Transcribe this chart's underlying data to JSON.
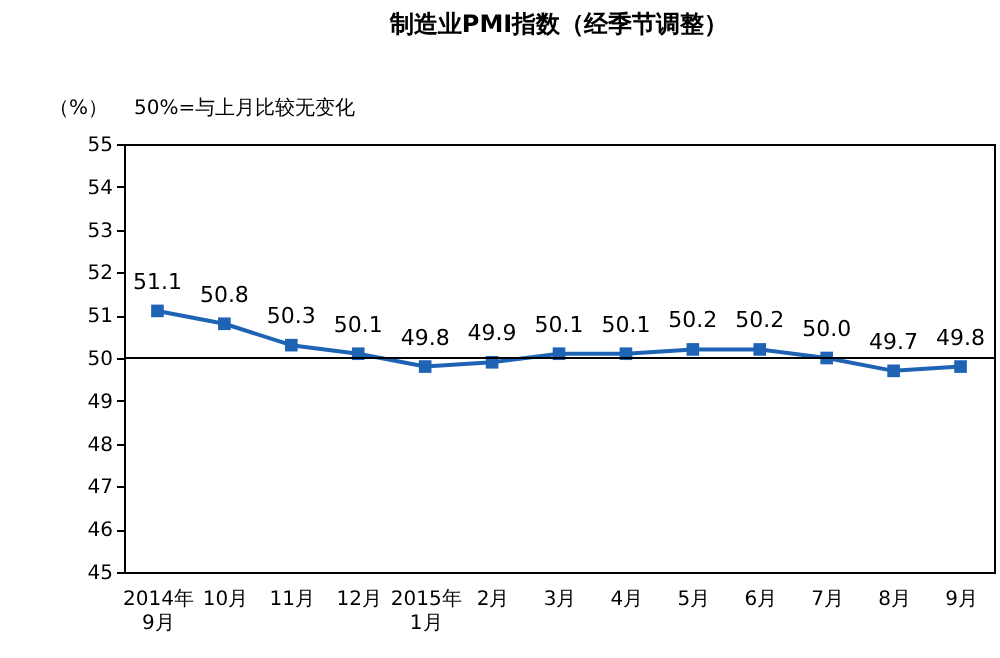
{
  "chart_data": {
    "type": "line",
    "title": "制造业PMI指数（经季节调整）",
    "ylabel": "（%）",
    "annotations": [
      "50%=与上月比较无变化"
    ],
    "categories": [
      "2014年\n9月",
      "10月",
      "11月",
      "12月",
      "2015年\n1月",
      "2月",
      "3月",
      "4月",
      "5月",
      "6月",
      "7月",
      "8月",
      "9月"
    ],
    "series": [
      {
        "color": "#1f64b4",
        "values": [
          51.1,
          50.8,
          50.3,
          50.1,
          49.8,
          49.9,
          50.1,
          50.1,
          50.2,
          50.2,
          50.0,
          49.7,
          49.8
        ],
        "value_labels": [
          "51.1",
          "50.8",
          "50.3",
          "50.1",
          "49.8",
          "49.9",
          "50.1",
          "50.1",
          "50.2",
          "50.2",
          "50.0",
          "49.7",
          "49.8"
        ]
      }
    ],
    "ylim": [
      45,
      55
    ],
    "yticks": [
      45,
      46,
      47,
      48,
      49,
      50,
      51,
      52,
      53,
      54,
      55
    ],
    "ref_lines": [
      {
        "axis": "y",
        "value": 50,
        "color": "#000000"
      }
    ],
    "marker": "square",
    "line_style": "solid"
  }
}
